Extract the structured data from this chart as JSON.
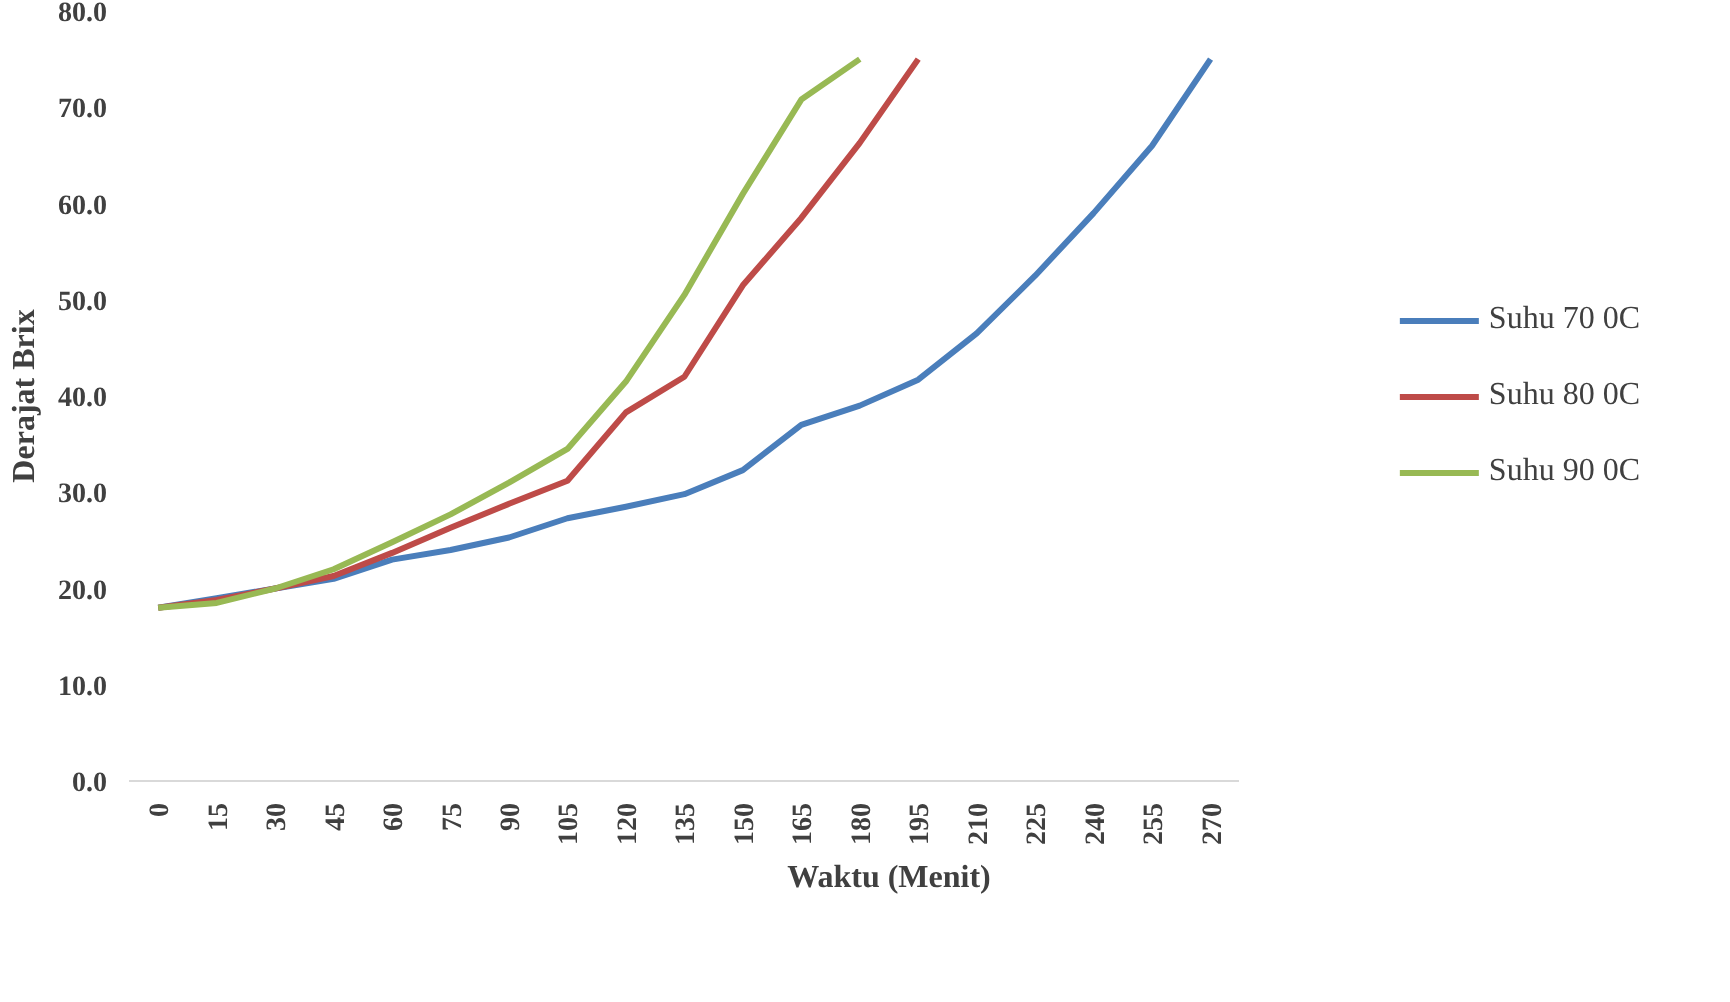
{
  "chart_data": {
    "type": "line",
    "xlabel": "Waktu (Menit)",
    "ylabel": "Derajat Brix",
    "categories": [
      "0",
      "15",
      "30",
      "45",
      "60",
      "75",
      "90",
      "105",
      "120",
      "135",
      "150",
      "165",
      "180",
      "195",
      "210",
      "225",
      "240",
      "255",
      "270"
    ],
    "series": [
      {
        "name": "Suhu 70 0C",
        "color": "#4a7ebb",
        "values": [
          18,
          19,
          20,
          21,
          23,
          24,
          25.3,
          27.3,
          28.5,
          29.8,
          32.3,
          37,
          39,
          41.7,
          46.5,
          52.5,
          59,
          66,
          75
        ]
      },
      {
        "name": "Suhu 80 0C",
        "color": "#be4b48",
        "values": [
          18,
          18.8,
          20,
          21.3,
          23.7,
          26.3,
          28.8,
          31.2,
          38.3,
          42,
          51.5,
          58.5,
          66.3,
          75,
          null,
          null,
          null,
          null,
          null
        ]
      },
      {
        "name": "Suhu 90 0C",
        "color": "#98b954",
        "values": [
          18,
          18.5,
          20,
          22,
          24.8,
          27.7,
          31,
          34.5,
          41.5,
          50.5,
          61,
          70.8,
          75,
          null,
          null,
          null,
          null,
          null,
          null
        ]
      }
    ],
    "ylim": [
      0,
      80
    ],
    "yticks": [
      {
        "value": 0,
        "label": "0.0"
      },
      {
        "value": 10,
        "label": "10.0"
      },
      {
        "value": 20,
        "label": "20.0"
      },
      {
        "value": 30,
        "label": "30.0"
      },
      {
        "value": 40,
        "label": "40.0"
      },
      {
        "value": 50,
        "label": "50.0"
      },
      {
        "value": 60,
        "label": "60.0"
      },
      {
        "value": 70,
        "label": "70.0"
      },
      {
        "value": 80,
        "label": "80.0"
      }
    ],
    "grid": false,
    "legend": "right",
    "marker": "none",
    "line_style": "solid"
  }
}
